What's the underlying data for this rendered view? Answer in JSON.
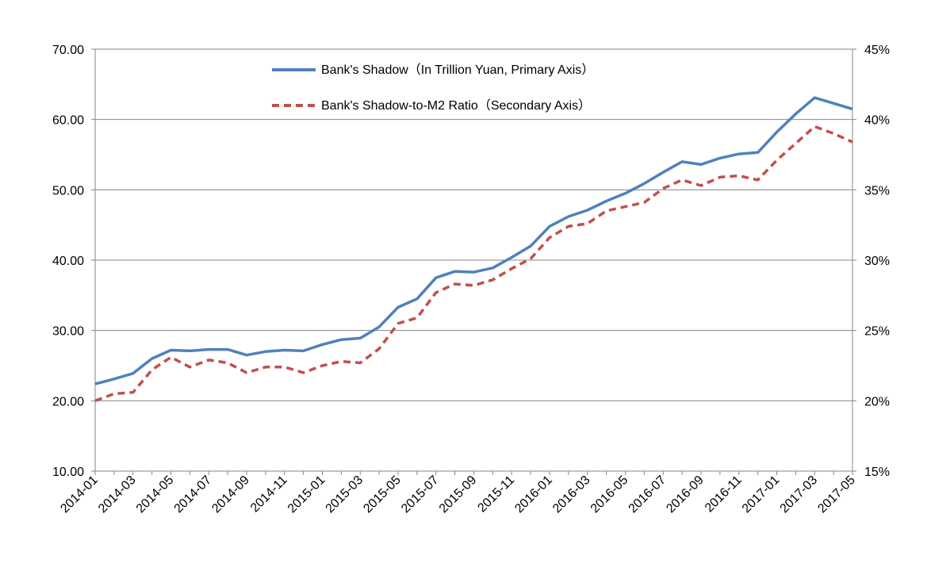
{
  "chart_data": {
    "type": "line",
    "title": "",
    "xlabel": "",
    "ylabel": "",
    "y_left": {
      "ylim": [
        10,
        70
      ],
      "ticks": [
        "10.00",
        "20.00",
        "30.00",
        "40.00",
        "50.00",
        "60.00",
        "70.00"
      ]
    },
    "y_right": {
      "ylim": [
        15,
        45
      ],
      "ticks": [
        "15%",
        "20%",
        "25%",
        "30%",
        "35%",
        "40%",
        "45%"
      ]
    },
    "grid": "horizontal",
    "legend_position": "top-center",
    "x": [
      "2014-01",
      "2014-02",
      "2014-03",
      "2014-04",
      "2014-05",
      "2014-06",
      "2014-07",
      "2014-08",
      "2014-09",
      "2014-10",
      "2014-11",
      "2014-12",
      "2015-01",
      "2015-02",
      "2015-03",
      "2015-04",
      "2015-05",
      "2015-06",
      "2015-07",
      "2015-08",
      "2015-09",
      "2015-10",
      "2015-11",
      "2015-12",
      "2016-01",
      "2016-02",
      "2016-03",
      "2016-04",
      "2016-05",
      "2016-06",
      "2016-07",
      "2016-08",
      "2016-09",
      "2016-10",
      "2016-11",
      "2016-12",
      "2017-01",
      "2017-02",
      "2017-03",
      "2017-04",
      "2017-05"
    ],
    "x_tick_labels": [
      "2014-01",
      "2014-03",
      "2014-05",
      "2014-07",
      "2014-09",
      "2014-11",
      "2015-01",
      "2015-03",
      "2015-05",
      "2015-07",
      "2015-09",
      "2015-11",
      "2016-01",
      "2016-03",
      "2016-05",
      "2016-07",
      "2016-09",
      "2016-11",
      "2017-01",
      "2017-03",
      "2017-05"
    ],
    "series": [
      {
        "name": "Bank's Shadow（In Trillion Yuan, Primary Axis）",
        "axis": "left",
        "color": "#4f81bd",
        "style": "solid",
        "values": [
          22.4,
          23.1,
          23.9,
          26.0,
          27.2,
          27.1,
          27.3,
          27.3,
          26.5,
          27.0,
          27.2,
          27.1,
          28.0,
          28.7,
          28.9,
          30.5,
          33.3,
          34.5,
          37.5,
          38.4,
          38.3,
          38.9,
          40.4,
          42.0,
          44.8,
          46.2,
          47.1,
          48.4,
          49.5,
          50.9,
          52.5,
          54.0,
          53.6,
          54.5,
          55.1,
          55.3,
          58.2,
          60.8,
          63.1,
          62.3,
          61.5
        ]
      },
      {
        "name": "Bank's Shadow-to-M2 Ratio（Secondary Axis）",
        "axis": "right",
        "color": "#c0504d",
        "style": "dashed",
        "values": [
          20.0,
          20.5,
          20.6,
          22.2,
          23.1,
          22.4,
          22.9,
          22.7,
          22.0,
          22.4,
          22.4,
          22.0,
          22.5,
          22.8,
          22.7,
          23.7,
          25.5,
          25.9,
          27.7,
          28.3,
          28.2,
          28.6,
          29.4,
          30.1,
          31.6,
          32.4,
          32.6,
          33.5,
          33.8,
          34.1,
          35.1,
          35.7,
          35.3,
          35.9,
          36.0,
          35.7,
          37.1,
          38.3,
          39.5,
          39.0,
          38.4
        ]
      }
    ]
  }
}
